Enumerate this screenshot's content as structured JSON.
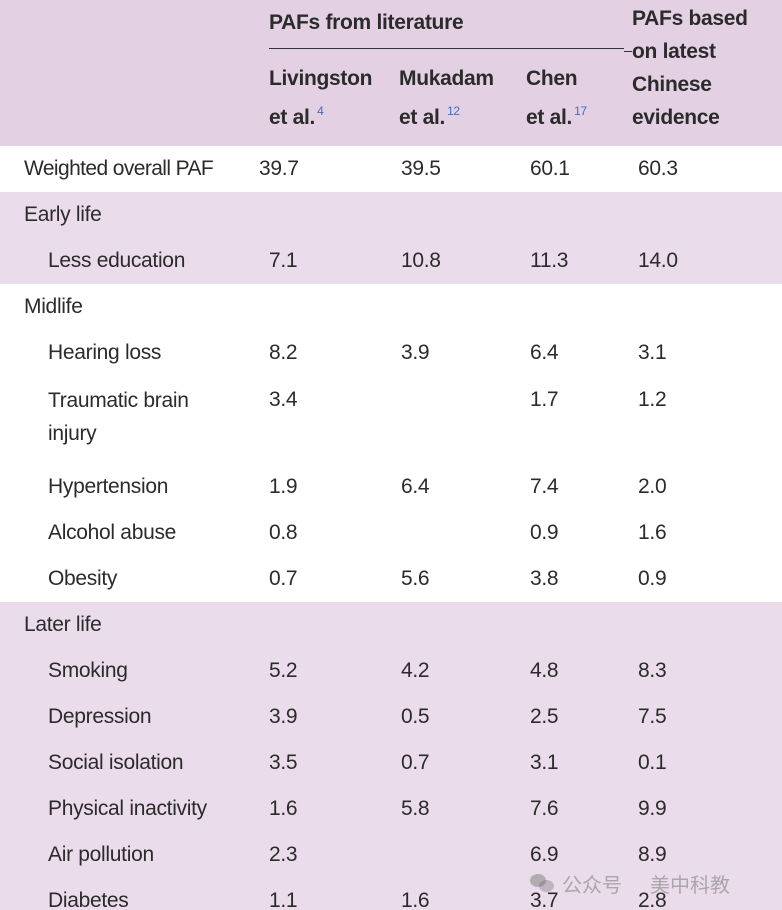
{
  "header": {
    "group_label": "PAFs from literature",
    "latest_label_lines": [
      "PAFs based",
      "on latest",
      "Chinese",
      "evidence"
    ],
    "studies": [
      {
        "line1": "Livingston",
        "line2": "et al.",
        "ref": "4"
      },
      {
        "line1": "Mukadam",
        "line2": "et al.",
        "ref": "12"
      },
      {
        "line1": "Chen",
        "line2": "et al.",
        "ref": "17"
      }
    ]
  },
  "overall": {
    "label": "Weighted overall PAF",
    "values": [
      "39.7",
      "39.5",
      "60.1",
      "60.3"
    ]
  },
  "sections": [
    {
      "title": "Early life",
      "rows": [
        {
          "label_lines": [
            "Less education"
          ],
          "values": [
            "7.1",
            "10.8",
            "11.3",
            "14.0"
          ]
        }
      ]
    },
    {
      "title": "Midlife",
      "rows": [
        {
          "label_lines": [
            "Hearing loss"
          ],
          "values": [
            "8.2",
            "3.9",
            "6.4",
            "3.1"
          ]
        },
        {
          "label_lines": [
            "Traumatic brain",
            "injury"
          ],
          "values": [
            "3.4",
            "",
            "1.7",
            "1.2"
          ]
        },
        {
          "label_lines": [
            "Hypertension"
          ],
          "values": [
            "1.9",
            "6.4",
            "7.4",
            "2.0"
          ]
        },
        {
          "label_lines": [
            "Alcohol abuse"
          ],
          "values": [
            "0.8",
            "",
            "0.9",
            "1.6"
          ]
        },
        {
          "label_lines": [
            "Obesity"
          ],
          "values": [
            "0.7",
            "5.6",
            "3.8",
            "0.9"
          ]
        }
      ]
    },
    {
      "title": "Later life",
      "rows": [
        {
          "label_lines": [
            "Smoking"
          ],
          "values": [
            "5.2",
            "4.2",
            "4.8",
            "8.3"
          ]
        },
        {
          "label_lines": [
            "Depression"
          ],
          "values": [
            "3.9",
            "0.5",
            "2.5",
            "7.5"
          ]
        },
        {
          "label_lines": [
            "Social isolation"
          ],
          "values": [
            "3.5",
            "0.7",
            "3.1",
            "0.1"
          ]
        },
        {
          "label_lines": [
            "Physical inactivity"
          ],
          "values": [
            "1.6",
            "5.8",
            "7.6",
            "9.9"
          ]
        },
        {
          "label_lines": [
            "Air pollution"
          ],
          "values": [
            "2.3",
            "",
            "6.9",
            "8.9"
          ]
        },
        {
          "label_lines": [
            "Diabetes"
          ],
          "values": [
            "1.1",
            "1.6",
            "3.7",
            "2.8"
          ]
        }
      ]
    }
  ],
  "watermark": {
    "left_text": "公众号",
    "right_text": "美中科教",
    "icon": "wechat-icon"
  },
  "colors": {
    "band": "#eadcea",
    "header": "#e3d1e3",
    "ref_link": "#3b6fc4"
  }
}
